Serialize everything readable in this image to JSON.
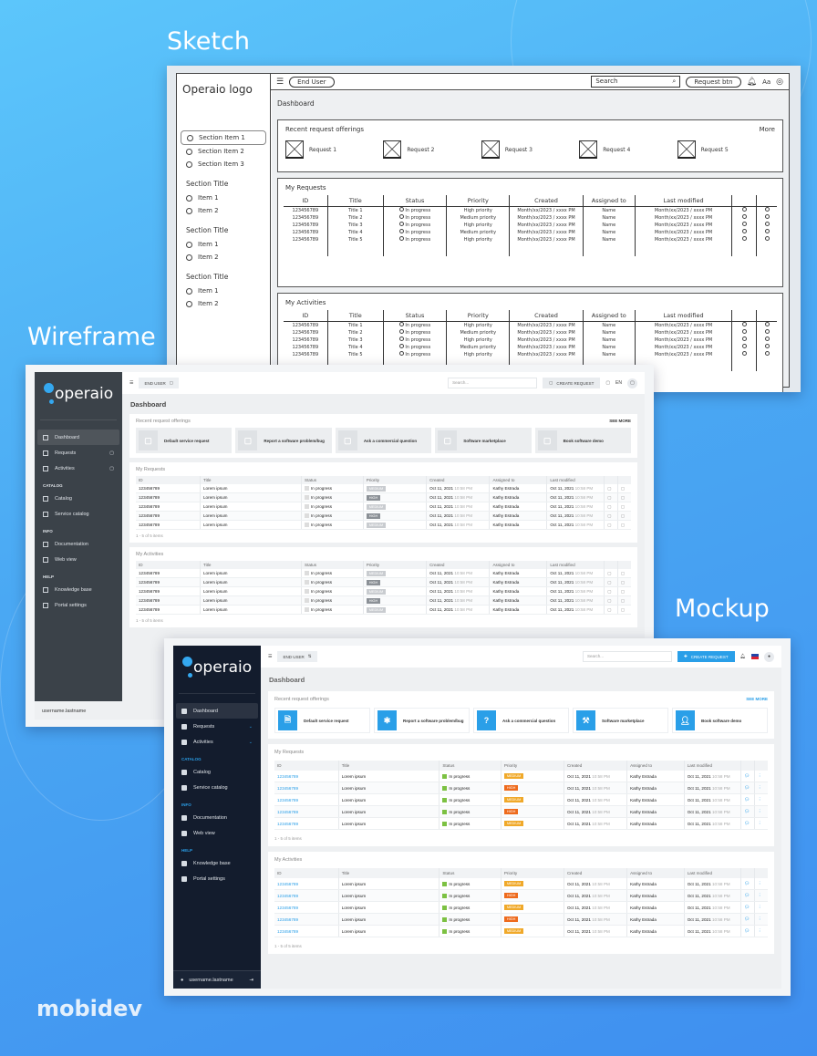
{
  "labels": {
    "sketch": "Sketch",
    "wireframe": "Wireframe",
    "mockup": "Mockup",
    "brand": "mobidev"
  },
  "colors": {
    "background": "#4aa8f3",
    "wire_sidebar": "#3b4249",
    "mock_sidebar": "#131c2d",
    "accent": "#2a9fe8",
    "medium": "#f0a92a",
    "high": "#ee6a1c",
    "status_green": "#7cc142"
  },
  "sketch": {
    "logo": "Operaio logo",
    "end_user": "End User",
    "search": "Search",
    "request_btn": "Request btn",
    "lang": "Aa",
    "dashboard": "Dashboard",
    "section_items": [
      "Section Item 1",
      "Section Item 2",
      "Section Item 3"
    ],
    "sections": [
      {
        "title": "Section Title",
        "items": [
          "Item 1",
          "Item 2"
        ]
      },
      {
        "title": "Section Title",
        "items": [
          "Item 1",
          "Item 2"
        ]
      },
      {
        "title": "Section Title",
        "items": [
          "Item 1",
          "Item 2"
        ]
      }
    ],
    "offerings_title": "Recent request offerings",
    "more": "More",
    "offerings": [
      "Request 1",
      "Request 2",
      "Request 3",
      "Request 4",
      "Request 5"
    ],
    "requests_title": "My Requests",
    "activities_title": "My Activities",
    "columns": [
      "ID",
      "Title",
      "Status",
      "Priority",
      "Created",
      "Assigned to",
      "Last modified",
      "",
      ""
    ],
    "rows": [
      [
        "123456789",
        "Title 1",
        "In progress",
        "High priority",
        "Month/xx/2023 / xxxx PM",
        "Name",
        "Month/xx/2023 / xxxx PM"
      ],
      [
        "123456789",
        "Title 2",
        "In progress",
        "Medium priority",
        "Month/xx/2023 / xxxx PM",
        "Name",
        "Month/xx/2023 / xxxx PM"
      ],
      [
        "123456789",
        "Title 3",
        "In progress",
        "High priority",
        "Month/xx/2023 / xxxx PM",
        "Name",
        "Month/xx/2023 / xxxx PM"
      ],
      [
        "123456789",
        "Title 4",
        "In progress",
        "Medium priority",
        "Month/xx/2023 / xxxx PM",
        "Name",
        "Month/xx/2023 / xxxx PM"
      ],
      [
        "123456789",
        "Title 5",
        "In progress",
        "High priority",
        "Month/xx/2023 / xxxx PM",
        "Name",
        "Month/xx/2023 / xxxx PM"
      ]
    ]
  },
  "app": {
    "logo": "operaio",
    "end_user": "END USER",
    "search_placeholder": "Search...",
    "create_request": "CREATE REQUEST",
    "lang": "EN",
    "dashboard": "Dashboard",
    "nav": [
      {
        "type": "item",
        "label": "Dashboard",
        "active": true,
        "icon": "home-icon"
      },
      {
        "type": "item",
        "label": "Requests",
        "chevron": true,
        "icon": "file-icon"
      },
      {
        "type": "item",
        "label": "Activities",
        "chevron": true,
        "icon": "clipboard-icon"
      },
      {
        "type": "section",
        "label": "CATALOG"
      },
      {
        "type": "item",
        "label": "Catalog",
        "icon": "list-icon"
      },
      {
        "type": "item",
        "label": "Service catalog",
        "icon": "database-icon"
      },
      {
        "type": "section",
        "label": "INFO"
      },
      {
        "type": "item",
        "label": "Documentation",
        "icon": "document-icon"
      },
      {
        "type": "item",
        "label": "Web view",
        "icon": "globe-icon"
      },
      {
        "type": "section",
        "label": "HELP"
      },
      {
        "type": "item",
        "label": "Knowledge base",
        "icon": "info-icon"
      },
      {
        "type": "item",
        "label": "Portal settings",
        "icon": "gear-icon"
      }
    ],
    "username": "username.lastname",
    "offerings_title": "Recent request offerings",
    "see_more": "SEE MORE",
    "offerings": [
      {
        "label": "Default service request",
        "icon": "file-plus-icon"
      },
      {
        "label": "Report a software problem/bug",
        "icon": "bug-icon"
      },
      {
        "label": "Ask a commercial question",
        "icon": "question-icon"
      },
      {
        "label": "Software marketplace",
        "icon": "hammer-icon"
      },
      {
        "label": "Book software demo",
        "icon": "user-add-icon"
      }
    ],
    "requests_title": "My Requests",
    "activities_title": "My Activities",
    "columns": [
      "ID",
      "Title",
      "Status",
      "Priority",
      "Created",
      "Assigned to",
      "Last modified",
      "",
      ""
    ],
    "rows": [
      {
        "id": "123456789",
        "title": "Lorem ipsum",
        "status": "In progress",
        "priority": "MEDIUM",
        "created": "Oct 11, 2021",
        "created_time": "10:58 PM",
        "assigned": "Kathy Estrada",
        "modified": "Oct 11, 2021",
        "modified_time": "10:58 PM"
      },
      {
        "id": "123456789",
        "title": "Lorem ipsum",
        "status": "In progress",
        "priority": "HIGH",
        "created": "Oct 11, 2021",
        "created_time": "10:58 PM",
        "assigned": "Kathy Estrada",
        "modified": "Oct 11, 2021",
        "modified_time": "10:58 PM"
      },
      {
        "id": "123456789",
        "title": "Lorem ipsum",
        "status": "In progress",
        "priority": "MEDIUM",
        "created": "Oct 11, 2021",
        "created_time": "10:58 PM",
        "assigned": "Kathy Estrada",
        "modified": "Oct 11, 2021",
        "modified_time": "10:58 PM"
      },
      {
        "id": "123456789",
        "title": "Lorem ipsum",
        "status": "In progress",
        "priority": "HIGH",
        "created": "Oct 11, 2021",
        "created_time": "10:58 PM",
        "assigned": "Kathy Estrada",
        "modified": "Oct 11, 2021",
        "modified_time": "10:58 PM"
      },
      {
        "id": "123456789",
        "title": "Lorem ipsum",
        "status": "In progress",
        "priority": "MEDIUM",
        "created": "Oct 11, 2021",
        "created_time": "10:58 PM",
        "assigned": "Kathy Estrada",
        "modified": "Oct 11, 2021",
        "modified_time": "10:58 PM"
      }
    ],
    "pagination": "1 - 5 of 5 items"
  }
}
